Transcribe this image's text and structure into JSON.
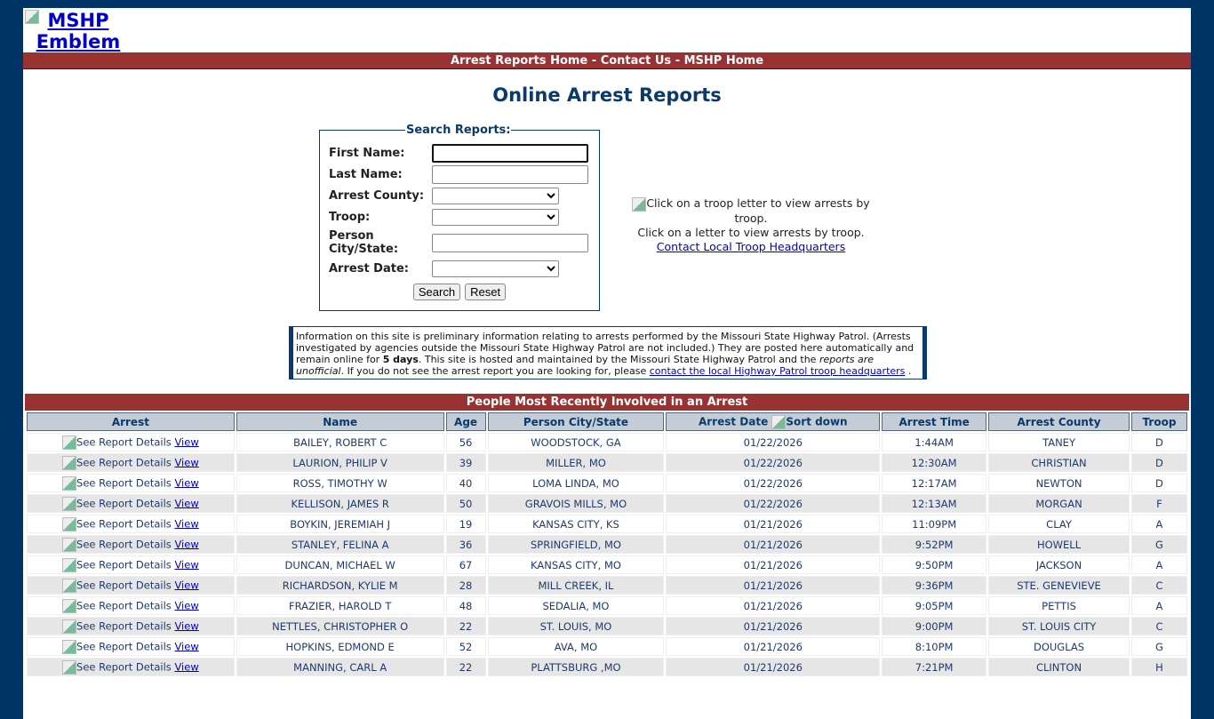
{
  "header": {
    "logo_alt": "MSHP Emblem",
    "nav": [
      "Arrest Reports Home",
      "Contact Us",
      "MSHP Home"
    ],
    "nav_sep": " - "
  },
  "title": "Online Arrest Reports",
  "search": {
    "legend": "Search Reports:",
    "first_name": "First Name:",
    "last_name": "Last Name:",
    "county": "Arrest County:",
    "troop": "Troop:",
    "city": "Person City/State:",
    "date": "Arrest Date:",
    "search_btn": "Search",
    "reset_btn": "Reset"
  },
  "troop_map": {
    "img_alt": "Click on a troop letter to view arrests by troop.",
    "caption": "Click on a letter to view arrests by troop.",
    "link": "Contact Local Troop Headquarters"
  },
  "info": {
    "p1": "Information on this site is preliminary information relating to arrests performed by the Missouri State Highway Patrol. (Arrests investigated by agencies outside the Missouri State Highway Patrol are not included.) They are posted here automatically and remain online for ",
    "bold": "5 days",
    "p2": ". This site is hosted and maintained by the Missouri State Highway Patrol and the ",
    "italic": "reports are unofficial",
    "p3": ". If you do not see the arrest report you are looking for, please ",
    "link": "contact the local Highway Patrol troop headquarters",
    "p4": " ."
  },
  "table": {
    "title": "People Most Recently Involved in an Arrest",
    "headers": [
      "Arrest",
      "Name",
      "Age",
      "Person City/State",
      "Arrest Date",
      "Arrest Time",
      "Arrest County",
      "Troop"
    ],
    "sort_alt": "Sort down",
    "details_alt": "See Report Details",
    "view": "View",
    "rows": [
      [
        "BAILEY, ROBERT C",
        "56",
        "WOODSTOCK, GA",
        "01/22/2026",
        "1:44AM",
        "TANEY",
        "D"
      ],
      [
        "LAURION, PHILIP V",
        "39",
        "MILLER, MO",
        "01/22/2026",
        "12:30AM",
        "CHRISTIAN",
        "D"
      ],
      [
        "ROSS, TIMOTHY W",
        "40",
        "LOMA LINDA, MO",
        "01/22/2026",
        "12:17AM",
        "NEWTON",
        "D"
      ],
      [
        "KELLISON, JAMES R",
        "50",
        "GRAVOIS MILLS, MO",
        "01/22/2026",
        "12:13AM",
        "MORGAN",
        "F"
      ],
      [
        "BOYKIN, JEREMIAH J",
        "19",
        "KANSAS CITY, KS",
        "01/21/2026",
        "11:09PM",
        "CLAY",
        "A"
      ],
      [
        "STANLEY, FELINA A",
        "36",
        "SPRINGFIELD, MO",
        "01/21/2026",
        "9:52PM",
        "HOWELL",
        "G"
      ],
      [
        "DUNCAN, MICHAEL W",
        "67",
        "KANSAS CITY, MO",
        "01/21/2026",
        "9:50PM",
        "JACKSON",
        "A"
      ],
      [
        "RICHARDSON, KYLIE M",
        "28",
        "MILL CREEK, IL",
        "01/21/2026",
        "9:36PM",
        "STE. GENEVIEVE",
        "C"
      ],
      [
        "FRAZIER, HAROLD T",
        "48",
        "SEDALIA, MO",
        "01/21/2026",
        "9:05PM",
        "PETTIS",
        "A"
      ],
      [
        "NETTLES, CHRISTOPHER O",
        "22",
        "ST. LOUIS, MO",
        "01/21/2026",
        "9:00PM",
        "ST. LOUIS CITY",
        "C"
      ],
      [
        "HOPKINS, EDMOND E",
        "52",
        "AVA, MO",
        "01/21/2026",
        "8:10PM",
        "DOUGLAS",
        "G"
      ],
      [
        "MANNING, CARL A",
        "22",
        "PLATTSBURG ,MO",
        "01/21/2026",
        "7:21PM",
        "CLINTON",
        "H"
      ]
    ]
  }
}
